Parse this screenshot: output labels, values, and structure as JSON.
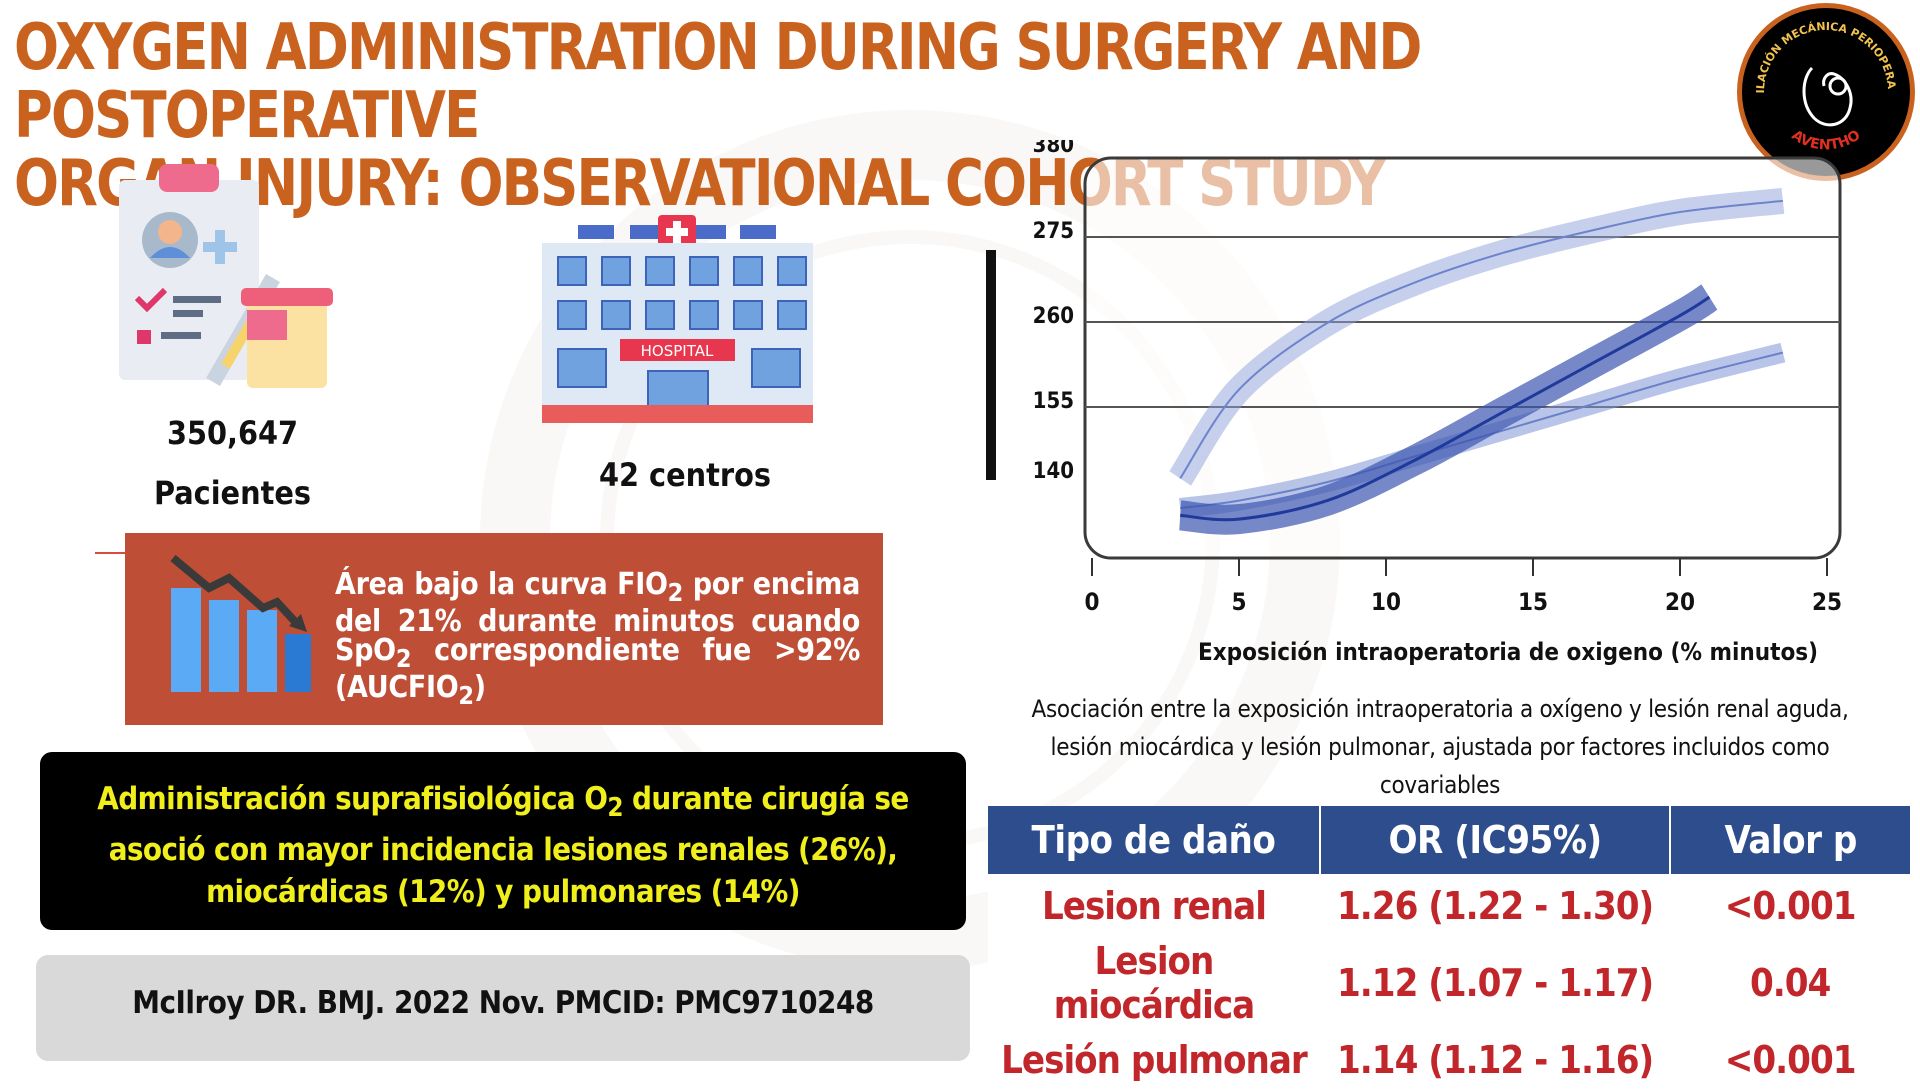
{
  "title": {
    "line1": "OXYGEN ADMINISTRATION DURING SURGERY AND POSTOPERATIVE",
    "line2": "ORGAN INJURY: OBSERVATIONAL COHORT STUDY"
  },
  "logo": {
    "top_text": "VENTILACIÓN MECÁNICA PERIOPERATORIA",
    "bottom_text": "AVENTHO"
  },
  "stats": {
    "patients_number": "350,647",
    "patients_label": "Pacientes",
    "centers_label": "42 centros",
    "hospital_sign": "HOSPITAL"
  },
  "callout": {
    "text_html": "Área bajo la curva FIO<sub>2</sub> por encima del 21% durante minutos cuando SpO<sub>2</sub> correspondiente fue >92% (AUCFIO<sub>2</sub>)"
  },
  "conclusion": {
    "text_html": "Administración suprafisiológica O<sub>2</sub> durante cirugía se asoció con mayor incidencia lesiones renales (26%), miocárdicas (12%) y pulmonares (14%)"
  },
  "reference": "McIlroy DR. BMJ. 2022 Nov. PMCID: PMC9710248",
  "chart_data": {
    "type": "line",
    "xlabel": "Exposición intraoperatoria de oxigeno (% minutos)",
    "ylabel": "",
    "x_ticks": [
      0,
      5,
      10,
      15,
      20,
      25
    ],
    "y_ticks": [
      "140",
      "155",
      "260",
      "275",
      "380"
    ],
    "series": [
      {
        "x": [
          3,
          5,
          8,
          11,
          14,
          17,
          20,
          23.5
        ],
        "y_level": [
          0.18,
          0.42,
          0.6,
          0.71,
          0.79,
          0.85,
          0.9,
          0.93
        ]
      },
      {
        "x": [
          3,
          5,
          8,
          11,
          14,
          17,
          20,
          23.5
        ],
        "y_level": [
          0.1,
          0.12,
          0.17,
          0.24,
          0.31,
          0.38,
          0.45,
          0.52
        ]
      },
      {
        "x": [
          3,
          5,
          8,
          11,
          14,
          17,
          20,
          21
        ],
        "y_level": [
          0.08,
          0.07,
          0.12,
          0.23,
          0.36,
          0.49,
          0.62,
          0.67
        ]
      }
    ],
    "colors": [
      "#8da2dc",
      "#7f95d6",
      "#3c55b0"
    ],
    "grid": true
  },
  "caption": "Asociación entre la exposición intraoperatoria a oxígeno y lesión renal aguda, lesión miocárdica y lesión pulmonar, ajustada por factores incluidos como covariables",
  "table": {
    "headers": [
      "Tipo de daño",
      "OR (IC95%)",
      "Valor p"
    ],
    "rows": [
      [
        "Lesion renal",
        "1.26 (1.22 - 1.30)",
        "<0.001"
      ],
      [
        "Lesion miocárdica",
        "1.12 (1.07 - 1.17)",
        "0.04"
      ],
      [
        "Lesión pulmonar",
        "1.14 (1.12 - 1.16)",
        "<0.001"
      ]
    ]
  }
}
